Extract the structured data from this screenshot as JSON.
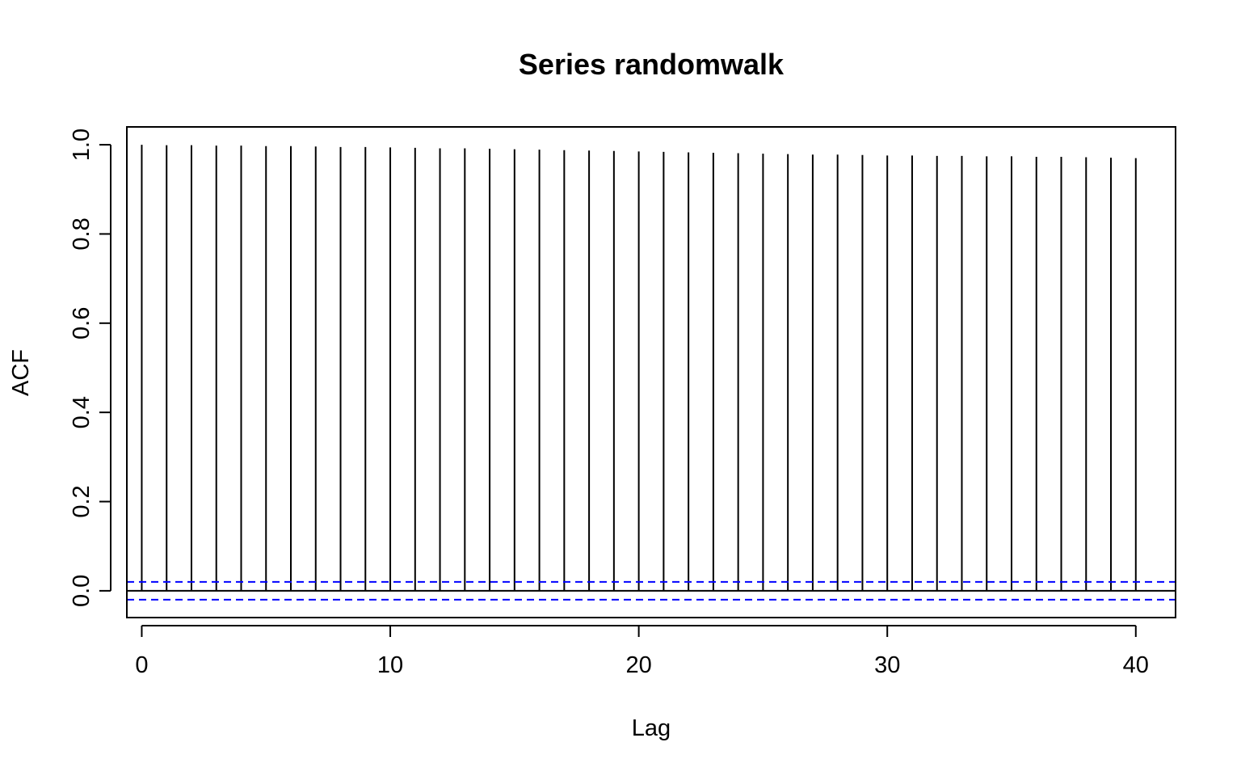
{
  "chart_data": {
    "type": "bar",
    "title": "Series randomwalk",
    "xlabel": "Lag",
    "ylabel": "ACF",
    "xlim": [
      -0.6,
      41.6
    ],
    "ylim": [
      -0.06,
      1.04
    ],
    "x_ticks": [
      "0",
      "10",
      "20",
      "30",
      "40"
    ],
    "y_ticks": [
      "0.0",
      "0.2",
      "0.4",
      "0.6",
      "0.8",
      "1.0"
    ],
    "lags": [
      0,
      1,
      2,
      3,
      4,
      5,
      6,
      7,
      8,
      9,
      10,
      11,
      12,
      13,
      14,
      15,
      16,
      17,
      18,
      19,
      20,
      21,
      22,
      23,
      24,
      25,
      26,
      27,
      28,
      29,
      30,
      31,
      32,
      33,
      34,
      35,
      36,
      37,
      38,
      39,
      40
    ],
    "values": [
      1.0,
      0.999,
      0.999,
      0.998,
      0.998,
      0.997,
      0.997,
      0.996,
      0.995,
      0.995,
      0.994,
      0.993,
      0.992,
      0.992,
      0.991,
      0.99,
      0.989,
      0.988,
      0.987,
      0.986,
      0.985,
      0.984,
      0.983,
      0.982,
      0.981,
      0.98,
      0.979,
      0.978,
      0.978,
      0.977,
      0.976,
      0.976,
      0.975,
      0.975,
      0.974,
      0.974,
      0.973,
      0.973,
      0.972,
      0.971,
      0.97
    ],
    "confidence_bound": 0.02,
    "bar_color": "#000000",
    "ci_color": "#0000ff",
    "grid": false,
    "legend": false
  }
}
